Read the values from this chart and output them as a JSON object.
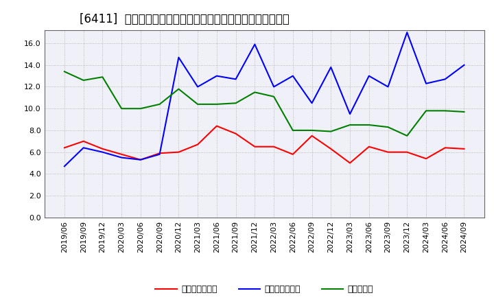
{
  "title": "[6411]  売上債権回転率、買入債務回転率、在庫回転率の推移",
  "dates": [
    "2019/06",
    "2019/09",
    "2019/12",
    "2020/03",
    "2020/06",
    "2020/09",
    "2020/12",
    "2021/03",
    "2021/06",
    "2021/09",
    "2021/12",
    "2022/03",
    "2022/06",
    "2022/09",
    "2022/12",
    "2023/03",
    "2023/06",
    "2023/09",
    "2023/12",
    "2024/03",
    "2024/06",
    "2024/09"
  ],
  "series_uriage": [
    6.4,
    7.0,
    6.3,
    5.8,
    5.3,
    5.9,
    6.0,
    6.7,
    8.4,
    7.7,
    6.5,
    6.5,
    5.8,
    7.5,
    6.3,
    5.0,
    6.5,
    6.0,
    6.0,
    5.4,
    6.4,
    6.3
  ],
  "series_kaiire": [
    4.7,
    6.4,
    6.0,
    5.5,
    5.3,
    5.8,
    14.7,
    12.0,
    13.0,
    12.7,
    15.9,
    12.0,
    13.0,
    10.5,
    13.8,
    9.5,
    13.0,
    12.0,
    17.0,
    12.3,
    12.7,
    14.0
  ],
  "series_zaiko": [
    13.4,
    12.6,
    12.9,
    10.0,
    10.0,
    10.4,
    11.8,
    10.4,
    10.4,
    10.5,
    11.5,
    11.1,
    8.0,
    8.0,
    7.9,
    8.5,
    8.5,
    8.3,
    7.5,
    9.8,
    9.8,
    9.7
  ],
  "color_uriage": "#ff0000",
  "color_kaiire": "#0000ff",
  "color_zaiko": "#008000",
  "ylim": [
    0.0,
    17.2
  ],
  "yticks": [
    0.0,
    2.0,
    4.0,
    6.0,
    8.0,
    10.0,
    12.0,
    14.0,
    16.0
  ],
  "legend_uriage": "売上債権回転率",
  "legend_kaiire": "買入債務回転率",
  "legend_zaiko": "在庫回転率",
  "bg_color": "#ffffff",
  "plot_bg_color": "#f0f0f8",
  "grid_color": "#aaaaaa",
  "title_fontsize": 12,
  "tick_fontsize": 8,
  "legend_fontsize": 9,
  "linewidth": 1.5
}
